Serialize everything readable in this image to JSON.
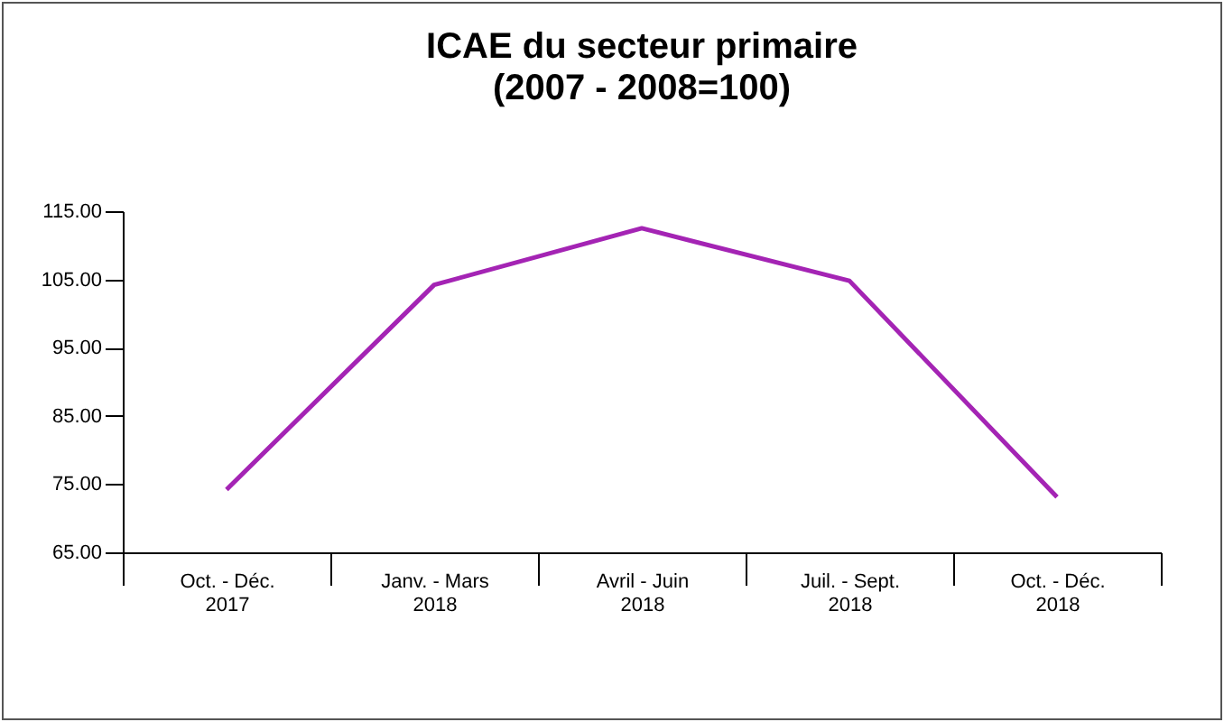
{
  "chart_data": {
    "type": "line",
    "title": "ICAE du secteur primaire",
    "subtitle": "(2007 - 2008=100)",
    "categories": [
      "Oct. - Déc. 2017",
      "Janv. - Mars 2018",
      "Avril - Juin 2018",
      "Juil. - Sept. 2018",
      "Oct. - Déc. 2018"
    ],
    "series": [
      {
        "color": "#a424b4",
        "values": [
          74.2,
          104.2,
          112.5,
          104.8,
          73.1
        ]
      }
    ],
    "ylim": [
      65,
      115
    ],
    "yticks": [
      {
        "value": 65,
        "label": "65.00"
      },
      {
        "value": 75,
        "label": "75.00"
      },
      {
        "value": 85,
        "label": "85.00"
      },
      {
        "value": 95,
        "label": "95.00"
      },
      {
        "value": 105,
        "label": "105.00"
      },
      {
        "value": 115,
        "label": "115.00"
      }
    ],
    "grid": false,
    "marker": "none",
    "line_style": "solid"
  }
}
